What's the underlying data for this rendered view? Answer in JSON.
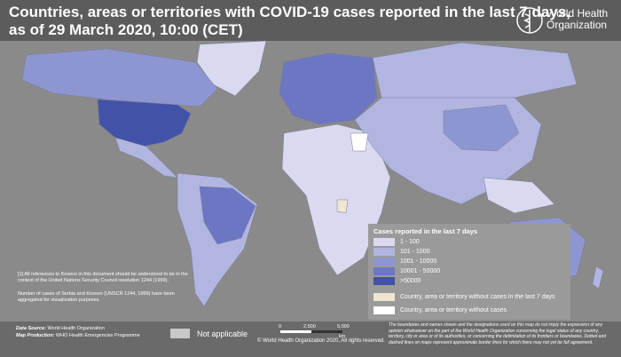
{
  "header": {
    "title_line1": "Countries, areas or territories with COVID-19  cases reported in the last 7 days,",
    "title_line2": "as of 29 March 2020, 10:00 (CET)"
  },
  "logo": {
    "line1": "World Health",
    "line2": "Organization"
  },
  "legend": {
    "title": "Cases reported in the last 7 days",
    "items": [
      {
        "label": "1 - 100",
        "color": "#d9d9f0"
      },
      {
        "label": "101 - 1000",
        "color": "#b0b6e0"
      },
      {
        "label": "1001 - 10000",
        "color": "#8e96d2"
      },
      {
        "label": "10001 - 50000",
        "color": "#6c76c2"
      },
      {
        "label": ">50000",
        "color": "#4152a8"
      }
    ],
    "extra": [
      {
        "label": "Country, area or territory without cases in the last 7 days",
        "color": "#efe6d2"
      },
      {
        "label": "Country, area or territory without cases",
        "color": "#ffffff"
      }
    ]
  },
  "notes": [
    "[1] All references to Kosovo in this document should be understood to be in the context of the United Nations Security Council resolution 1244 (1999).",
    "Number of cases of Serbia and Kosovo (UNSCR 1244, 1999) have been aggregated for visualization purposes."
  ],
  "footer": {
    "data_source_label": "Data Source:",
    "data_source": "World Health Organization",
    "map_production_label": "Map Production:",
    "map_production": "WHO Health Emergencies Programme",
    "not_applicable": "Not applicable",
    "scale": [
      "0",
      "2,500",
      "5,000"
    ],
    "scale_unit": "km",
    "copyright": "© World Health Organization 2020, All rights reserved.",
    "disclaimer": "The boundaries and names shown and the designations used on this map do not imply the expression of any opinion whatsoever on the part of the World Health Organization concerning the legal status of any country, territory, city or area or of its authorities, or concerning the delimitation of its frontiers or boundaries. Dotted and dashed lines on maps represent approximate border lines for which there may not yet be full agreement."
  }
}
